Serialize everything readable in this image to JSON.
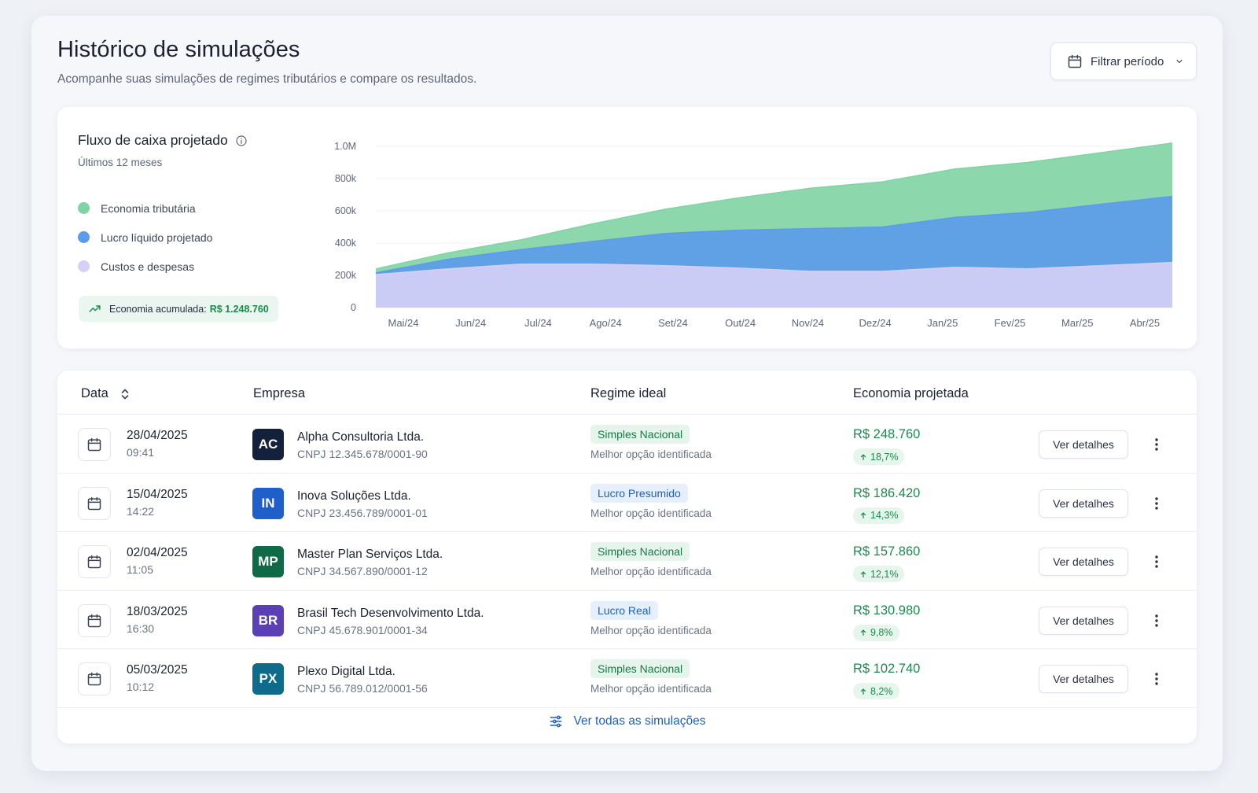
{
  "header": {
    "title": "Histórico de simulações",
    "subtitle": "Acompanhe suas simulações de regimes tributários e compare os resultados.",
    "filter_label": "Filtrar período",
    "filter_icon": "calendar-icon"
  },
  "chart_card": {
    "title": "Fluxo de caixa projetado",
    "subtitle": "Últimos 12 meses",
    "legend": [
      {
        "label": "Economia tributária",
        "color": "#7fd4a3"
      },
      {
        "label": "Lucro líquido projetado",
        "color": "#5b9bec"
      },
      {
        "label": "Custos e despesas",
        "color": "#d6d0f7"
      }
    ],
    "savings_label": "Economia acumulada:",
    "savings_value": "R$ 1.248.760"
  },
  "chart_data": {
    "type": "area",
    "title": "Fluxo de caixa projetado",
    "stacked": false,
    "categories": [
      "Mai/24",
      "Jun/24",
      "Jul/24",
      "Ago/24",
      "Set/24",
      "Out/24",
      "Nov/24",
      "Dez/24",
      "Jan/25",
      "Fev/25",
      "Mar/25",
      "Abr/25"
    ],
    "y_ticks": [
      "0",
      "200k",
      "400k",
      "600k",
      "800k",
      "1.0M"
    ],
    "ylim": [
      0,
      1000000
    ],
    "grid": true,
    "legend_position": "left",
    "series": [
      {
        "name": "Economia tributária",
        "color": "#7fd4a3",
        "values": [
          240000,
          340000,
          420000,
          520000,
          610000,
          680000,
          740000,
          780000,
          860000,
          900000,
          960000,
          1020000
        ]
      },
      {
        "name": "Lucro líquido projetado",
        "color": "#5b9bec",
        "values": [
          215000,
          300000,
          360000,
          410000,
          460000,
          480000,
          490000,
          500000,
          560000,
          590000,
          640000,
          690000
        ]
      },
      {
        "name": "Custos e despesas",
        "color": "#d6d0f7",
        "values": [
          205000,
          240000,
          270000,
          270000,
          260000,
          245000,
          225000,
          225000,
          250000,
          240000,
          260000,
          280000
        ]
      }
    ]
  },
  "table": {
    "headers": {
      "date": "Data",
      "company": "Empresa",
      "regime": "Regime ideal",
      "savings": "Economia projetada"
    },
    "details_label": "Ver detalhes",
    "rows": [
      {
        "date": "28/04/2025",
        "time": "09:41",
        "initials": "AC",
        "avatar_color": "#14213b",
        "company": "Alpha Consultoria Ltda.",
        "cnpj": "CNPJ 12.345.678/0001-90",
        "regime": "Simples Nacional",
        "regime_type": "green",
        "note": "Melhor opção identificada",
        "value": "R$ 248.760",
        "pct": "18,7%"
      },
      {
        "date": "15/04/2025",
        "time": "14:22",
        "initials": "IN",
        "avatar_color": "#1f5fc9",
        "company": "Inova Soluções Ltda.",
        "cnpj": "CNPJ 23.456.789/0001-01",
        "regime": "Lucro Presumido",
        "regime_type": "blue",
        "note": "Melhor opção identificada",
        "value": "R$ 186.420",
        "pct": "14,3%"
      },
      {
        "date": "02/04/2025",
        "time": "11:05",
        "initials": "MP",
        "avatar_color": "#0f6b47",
        "company": "Master Plan Serviços Ltda.",
        "cnpj": "CNPJ 34.567.890/0001-12",
        "regime": "Simples Nacional",
        "regime_type": "green",
        "note": "Melhor opção identificada",
        "value": "R$ 157.860",
        "pct": "12,1%"
      },
      {
        "date": "18/03/2025",
        "time": "16:30",
        "initials": "BR",
        "avatar_color": "#5a3fb5",
        "company": "Brasil Tech Desenvolvimento Ltda.",
        "cnpj": "CNPJ 45.678.901/0001-34",
        "regime": "Lucro Real",
        "regime_type": "blue",
        "note": "Melhor opção identificada",
        "value": "R$ 130.980",
        "pct": "9,8%"
      },
      {
        "date": "05/03/2025",
        "time": "10:12",
        "initials": "PX",
        "avatar_color": "#0e6b8a",
        "company": "Plexo Digital Ltda.",
        "cnpj": "CNPJ 56.789.012/0001-56",
        "regime": "Simples Nacional",
        "regime_type": "green",
        "note": "Melhor opção identificada",
        "value": "R$ 102.740",
        "pct": "8,2%"
      }
    ],
    "view_all_label": "Ver todas as simulações"
  }
}
